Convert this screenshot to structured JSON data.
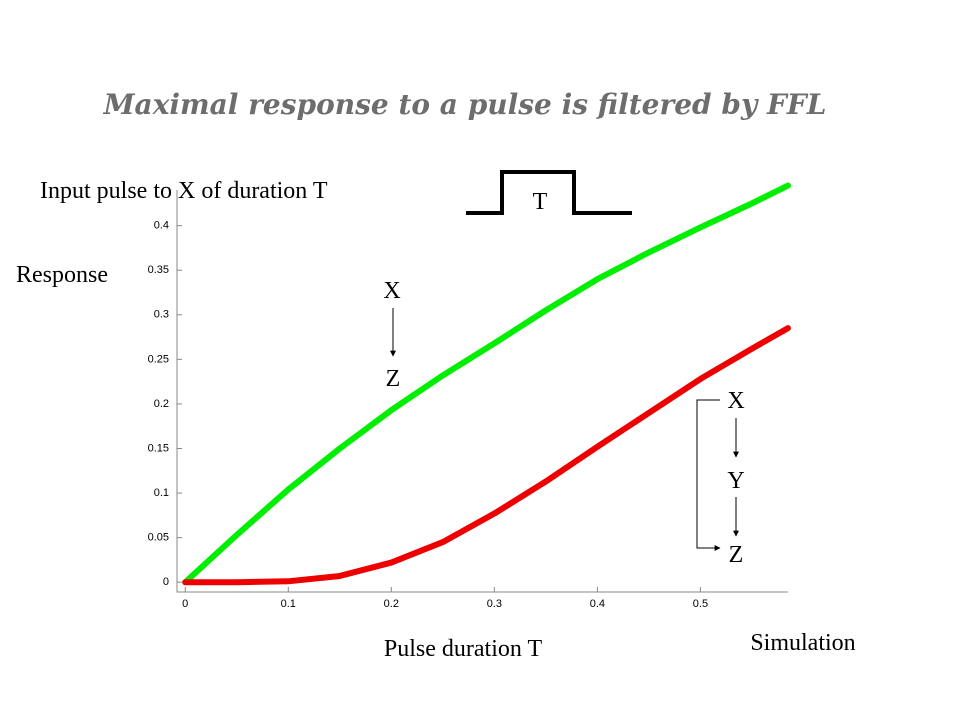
{
  "chart_data": {
    "type": "line",
    "title": "Maximal response to a pulse is filtered by FFL",
    "x_label": "Pulse duration T",
    "y_label": "Response",
    "subtitle": "Input pulse to X of duration T",
    "source": "Simulation",
    "annotations": {
      "pulse": "T",
      "direct": [
        "X",
        "Z"
      ],
      "cascade": [
        "X",
        "Y",
        "Z"
      ]
    },
    "x": [
      0,
      0.05,
      0.1,
      0.15,
      0.2,
      0.25,
      0.3,
      0.35,
      0.4,
      0.45,
      0.5,
      0.55,
      0.585
    ],
    "series": [
      {
        "color": "#00ee00",
        "values": [
          0,
          0.053,
          0.104,
          0.15,
          0.193,
          0.232,
          0.268,
          0.305,
          0.34,
          0.37,
          0.398,
          0.425,
          0.445
        ]
      },
      {
        "color": "#ee0000",
        "values": [
          0,
          0,
          0.001,
          0.007,
          0.022,
          0.045,
          0.077,
          0.113,
          0.152,
          0.19,
          0.228,
          0.262,
          0.285
        ]
      }
    ],
    "xlim": [
      -0.008,
      0.585
    ],
    "ylim": [
      -0.011,
      0.44
    ],
    "xticks": [
      0,
      0.1,
      0.2,
      0.3,
      0.4,
      0.5
    ],
    "yticks": [
      0,
      0.05,
      0.1,
      0.15,
      0.2,
      0.25,
      0.3,
      0.35,
      0.4
    ]
  }
}
